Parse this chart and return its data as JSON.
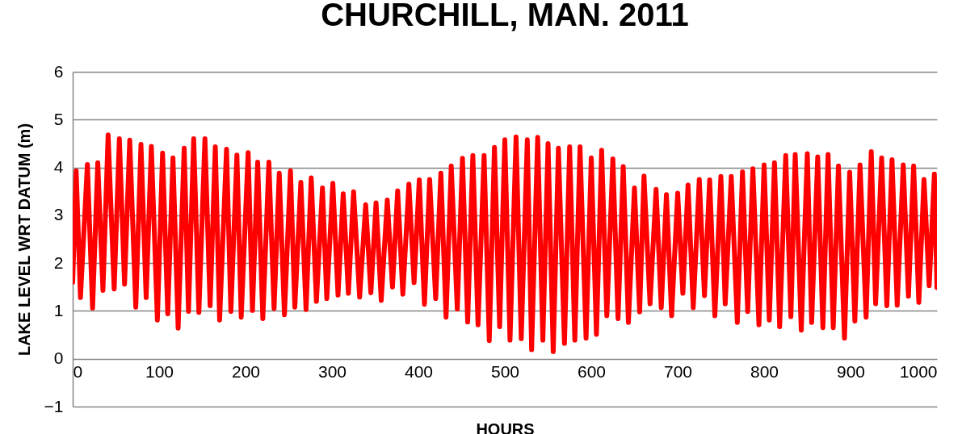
{
  "chart_data": {
    "type": "line",
    "title": "CHURCHILL, MAN. 2011",
    "xlabel": "HOURS",
    "ylabel": "LAKE LEVEL WRT DATUM (m)",
    "x": [
      0,
      4,
      9,
      17,
      23,
      29,
      35,
      41,
      48,
      54,
      60,
      66,
      73,
      79,
      85,
      91,
      98,
      104,
      110,
      116,
      122,
      129,
      134,
      140,
      146,
      153,
      159,
      165,
      170,
      178,
      183,
      190,
      195,
      203,
      208,
      214,
      220,
      227,
      233,
      239,
      245,
      252,
      257,
      264,
      270,
      276,
      282,
      289,
      294,
      301,
      307,
      313,
      319,
      325,
      332,
      339,
      345,
      351,
      357,
      364,
      370,
      376,
      382,
      389,
      395,
      401,
      407,
      413,
      420,
      426,
      432,
      438,
      445,
      451,
      457,
      463,
      469,
      476,
      482,
      488,
      494,
      500,
      506,
      513,
      519,
      526,
      531,
      538,
      544,
      550,
      556,
      562,
      569,
      575,
      581,
      587,
      594,
      600,
      606,
      612,
      618,
      625,
      631,
      637,
      643,
      650,
      656,
      661,
      668,
      675,
      681,
      687,
      693,
      700,
      706,
      712,
      718,
      725,
      731,
      737,
      743,
      750,
      755,
      762,
      769,
      775,
      781,
      787,
      794,
      800,
      806,
      812,
      818,
      825,
      831,
      836,
      843,
      850,
      855,
      862,
      868,
      874,
      880,
      886,
      893,
      899,
      905,
      911,
      918,
      924,
      929,
      936,
      942,
      948,
      954,
      961,
      967,
      973,
      979,
      985,
      991,
      997,
      1000
    ],
    "series": [
      {
        "color": "#ff0000",
        "values": [
          1.6,
          3.93,
          1.28,
          4.06,
          1.06,
          4.1,
          1.43,
          4.68,
          1.46,
          4.6,
          1.56,
          4.57,
          1.08,
          4.48,
          1.28,
          4.44,
          0.81,
          4.3,
          0.94,
          4.2,
          0.64,
          4.4,
          0.99,
          4.6,
          0.97,
          4.6,
          1.11,
          4.43,
          0.81,
          4.38,
          0.99,
          4.26,
          0.87,
          4.31,
          1.01,
          4.11,
          0.84,
          4.11,
          1.05,
          3.88,
          0.92,
          3.93,
          1.08,
          3.69,
          1.03,
          3.78,
          1.2,
          3.57,
          1.26,
          3.67,
          1.33,
          3.45,
          1.37,
          3.49,
          1.29,
          3.22,
          1.38,
          3.26,
          1.22,
          3.32,
          1.5,
          3.51,
          1.35,
          3.65,
          1.59,
          3.74,
          1.14,
          3.75,
          1.26,
          3.88,
          0.87,
          4.03,
          1.04,
          4.19,
          0.77,
          4.25,
          0.71,
          4.25,
          0.38,
          4.42,
          0.67,
          4.58,
          0.39,
          4.64,
          0.42,
          4.58,
          0.19,
          4.63,
          0.39,
          4.5,
          0.15,
          4.4,
          0.32,
          4.43,
          0.39,
          4.43,
          0.43,
          4.2,
          0.51,
          4.36,
          0.9,
          4.18,
          0.84,
          4.02,
          0.76,
          3.57,
          0.98,
          3.82,
          1.15,
          3.54,
          1.07,
          3.43,
          0.9,
          3.46,
          1.37,
          3.63,
          1.07,
          3.75,
          1.32,
          3.74,
          0.9,
          3.81,
          1.15,
          3.81,
          0.76,
          3.91,
          0.99,
          3.97,
          0.71,
          4.05,
          0.81,
          4.1,
          0.67,
          4.25,
          0.88,
          4.27,
          0.6,
          4.29,
          0.76,
          4.22,
          0.65,
          4.27,
          0.65,
          4.03,
          0.43,
          3.9,
          0.79,
          4.05,
          0.87,
          4.33,
          1.15,
          4.2,
          1.11,
          4.16,
          1.12,
          4.05,
          1.31,
          4.03,
          1.18,
          3.75,
          1.53,
          3.86,
          1.49
        ]
      }
    ],
    "xlim": [
      0,
      1000
    ],
    "ylim": [
      -1,
      6
    ],
    "xticks": [
      0,
      100,
      200,
      300,
      400,
      500,
      600,
      700,
      800,
      900,
      1000
    ],
    "yticks": [
      -1,
      0,
      1,
      2,
      3,
      4,
      5,
      6
    ],
    "grid": "y",
    "line_style": "solid",
    "marker": "none"
  }
}
